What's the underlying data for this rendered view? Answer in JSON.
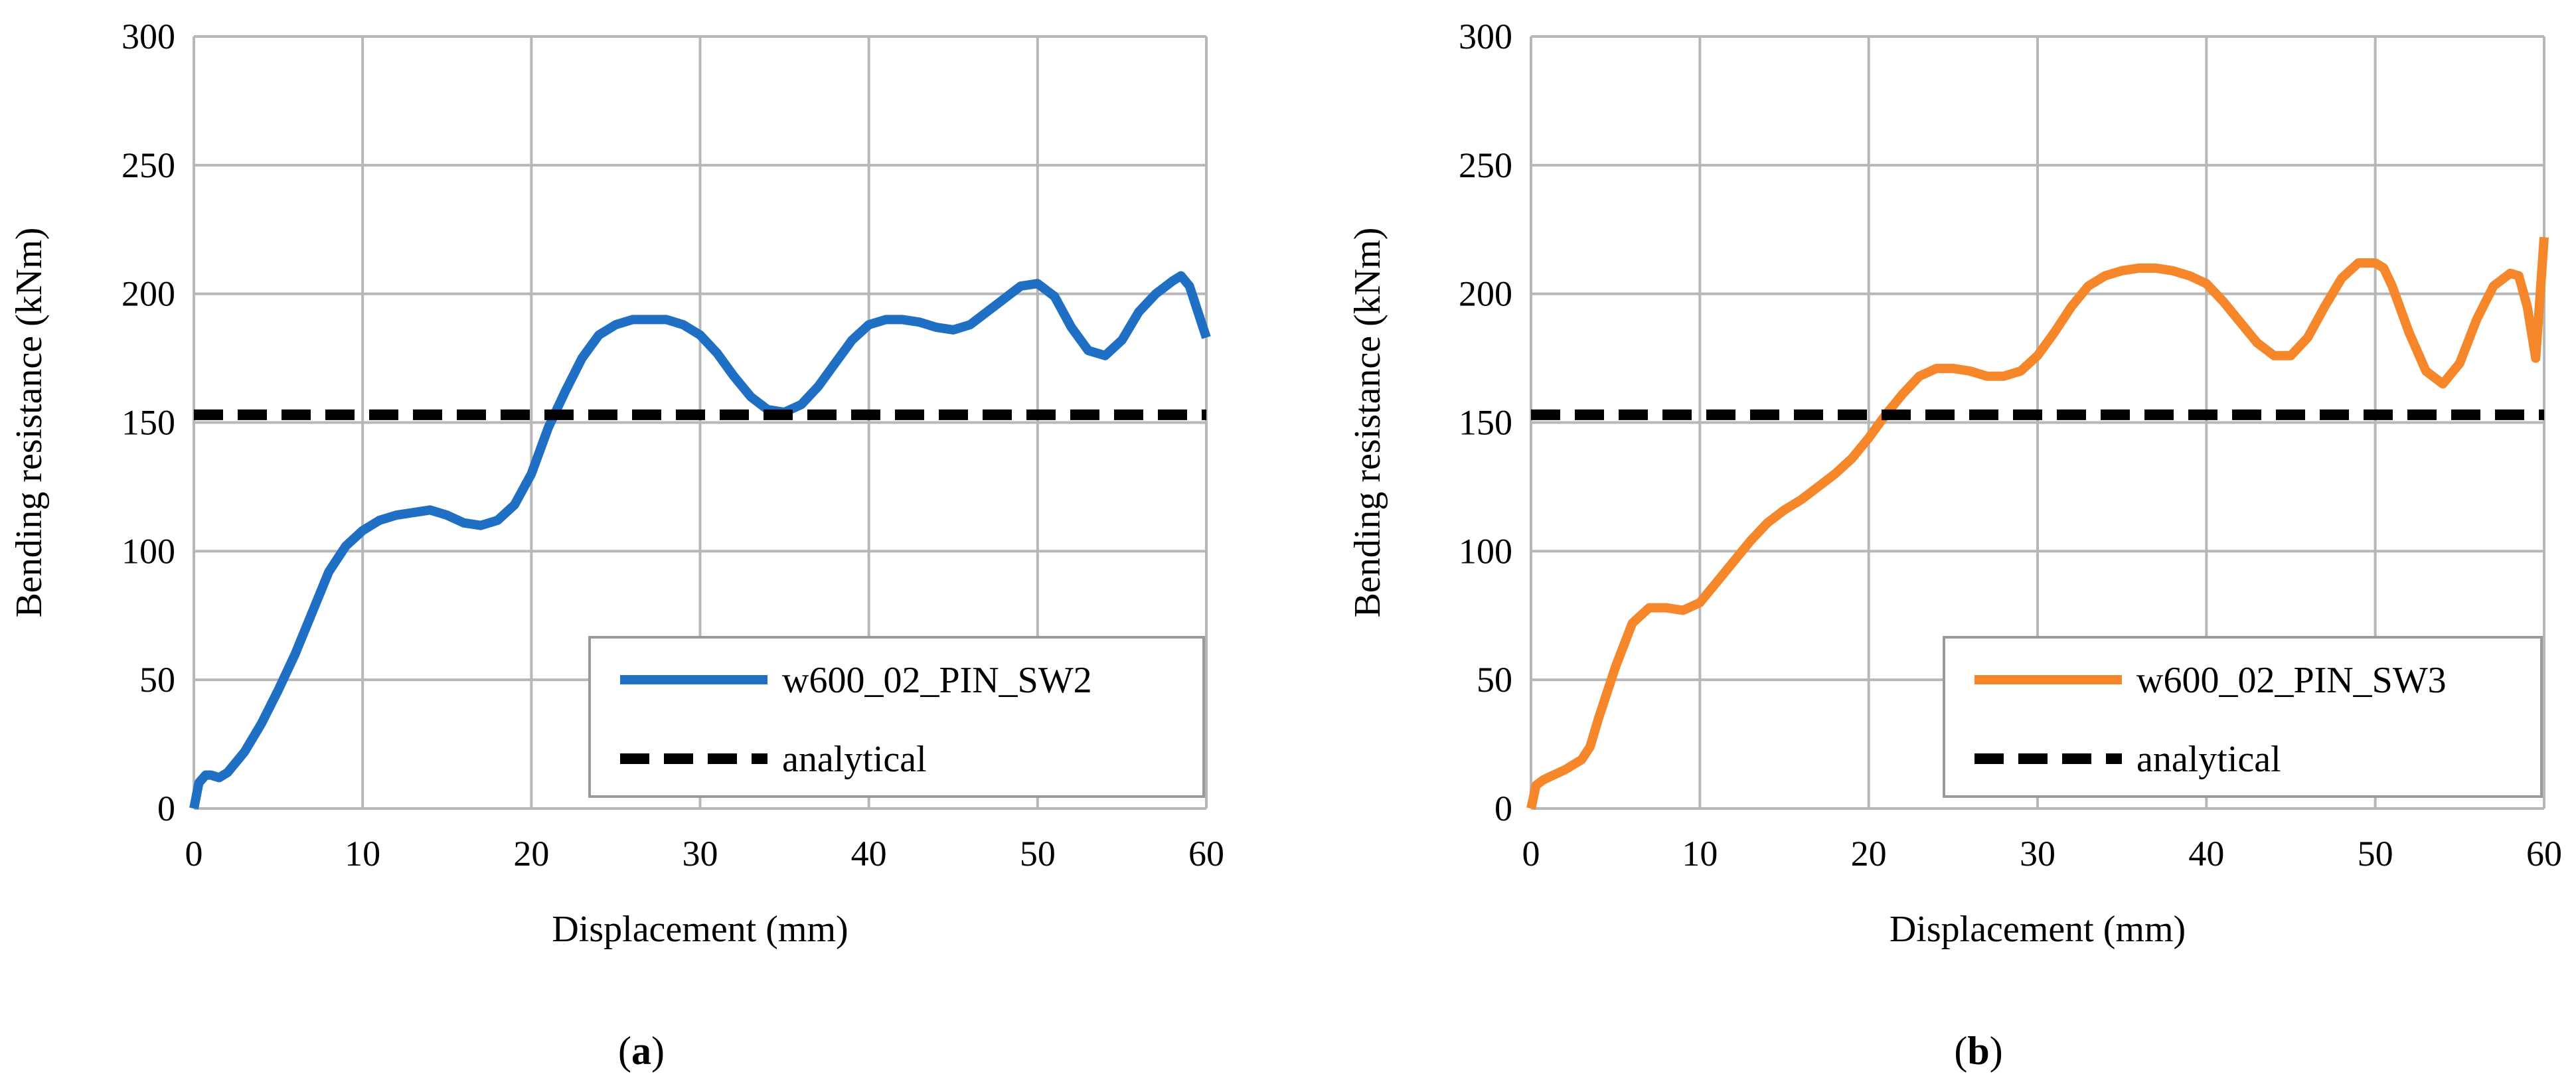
{
  "figure": {
    "panels": [
      {
        "label_open": "(",
        "label_letter": "a",
        "label_close": ")"
      },
      {
        "label_open": "(",
        "label_letter": "b",
        "label_close": ")"
      }
    ]
  },
  "chart_data": [
    {
      "type": "line",
      "panel": "a",
      "xlabel": "Displacement (mm)",
      "ylabel": "Bending resistance (kNm)",
      "xlim": [
        0,
        60
      ],
      "ylim": [
        0,
        300
      ],
      "xticks": [
        "0",
        "10",
        "20",
        "30",
        "40",
        "50",
        "60"
      ],
      "yticks": [
        "0",
        "50",
        "100",
        "150",
        "200",
        "250",
        "300"
      ],
      "grid": true,
      "legend_position": "bottom-right",
      "series": [
        {
          "name": "w600_02_PIN_SW2",
          "color": "#1f6fc4",
          "style": "solid",
          "x": [
            0,
            0.3,
            0.7,
            1,
            1.5,
            2,
            3,
            4,
            5,
            6,
            7,
            8,
            9,
            10,
            11,
            12,
            13,
            14,
            15,
            16,
            17,
            18,
            19,
            20,
            21,
            22,
            23,
            24,
            25,
            26,
            27,
            28,
            29,
            30,
            31,
            32,
            33,
            34,
            35,
            36,
            37,
            38,
            39,
            40,
            41,
            42,
            43,
            44,
            45,
            46,
            47,
            48,
            49,
            50,
            51,
            52,
            53,
            54,
            55,
            56,
            57,
            58,
            58.5,
            59,
            59.5,
            60
          ],
          "y": [
            0,
            10,
            13,
            13,
            12,
            14,
            22,
            33,
            46,
            60,
            76,
            92,
            102,
            108,
            112,
            114,
            115,
            116,
            114,
            111,
            110,
            112,
            118,
            130,
            148,
            162,
            175,
            184,
            188,
            190,
            190,
            190,
            188,
            184,
            177,
            168,
            160,
            155,
            154,
            157,
            164,
            173,
            182,
            188,
            190,
            190,
            189,
            187,
            186,
            188,
            193,
            198,
            203,
            204,
            199,
            187,
            178,
            176,
            182,
            193,
            200,
            205,
            207,
            203,
            193,
            183
          ]
        },
        {
          "name": "analytical",
          "color": "#000000",
          "style": "dashed",
          "x": [
            0,
            60
          ],
          "y": [
            153,
            153
          ]
        }
      ]
    },
    {
      "type": "line",
      "panel": "b",
      "xlabel": "Displacement (mm)",
      "ylabel": "Bending resistance (kNm)",
      "xlim": [
        0,
        60
      ],
      "ylim": [
        0,
        300
      ],
      "xticks": [
        "0",
        "10",
        "20",
        "30",
        "40",
        "50",
        "60"
      ],
      "yticks": [
        "0",
        "50",
        "100",
        "150",
        "200",
        "250",
        "300"
      ],
      "grid": true,
      "legend_position": "bottom-right",
      "series": [
        {
          "name": "w600_02_PIN_SW3",
          "color": "#f5862a",
          "style": "solid",
          "x": [
            0,
            0.3,
            0.7,
            1,
            2,
            3,
            3.5,
            4,
            5,
            6,
            7,
            8,
            9,
            10,
            11,
            12,
            13,
            14,
            15,
            16,
            17,
            18,
            19,
            20,
            21,
            22,
            23,
            24,
            25,
            26,
            27,
            28,
            29,
            30,
            31,
            32,
            33,
            34,
            35,
            36,
            37,
            38,
            39,
            40,
            41,
            42,
            43,
            44,
            45,
            46,
            47,
            48,
            49,
            50,
            50.5,
            51,
            52,
            53,
            54,
            55,
            56,
            57,
            58,
            58.5,
            59,
            59.5,
            60
          ],
          "y": [
            0,
            9,
            11,
            12,
            15,
            19,
            24,
            35,
            55,
            72,
            78,
            78,
            77,
            80,
            88,
            96,
            104,
            111,
            116,
            120,
            125,
            130,
            136,
            144,
            153,
            161,
            168,
            171,
            171,
            170,
            168,
            168,
            170,
            176,
            185,
            195,
            203,
            207,
            209,
            210,
            210,
            209,
            207,
            204,
            197,
            189,
            181,
            176,
            176,
            183,
            195,
            206,
            212,
            212,
            210,
            203,
            185,
            170,
            165,
            173,
            190,
            203,
            208,
            207,
            195,
            175,
            222
          ]
        },
        {
          "name": "analytical",
          "color": "#000000",
          "style": "dashed",
          "x": [
            0,
            60
          ],
          "y": [
            153,
            153
          ]
        }
      ]
    }
  ]
}
